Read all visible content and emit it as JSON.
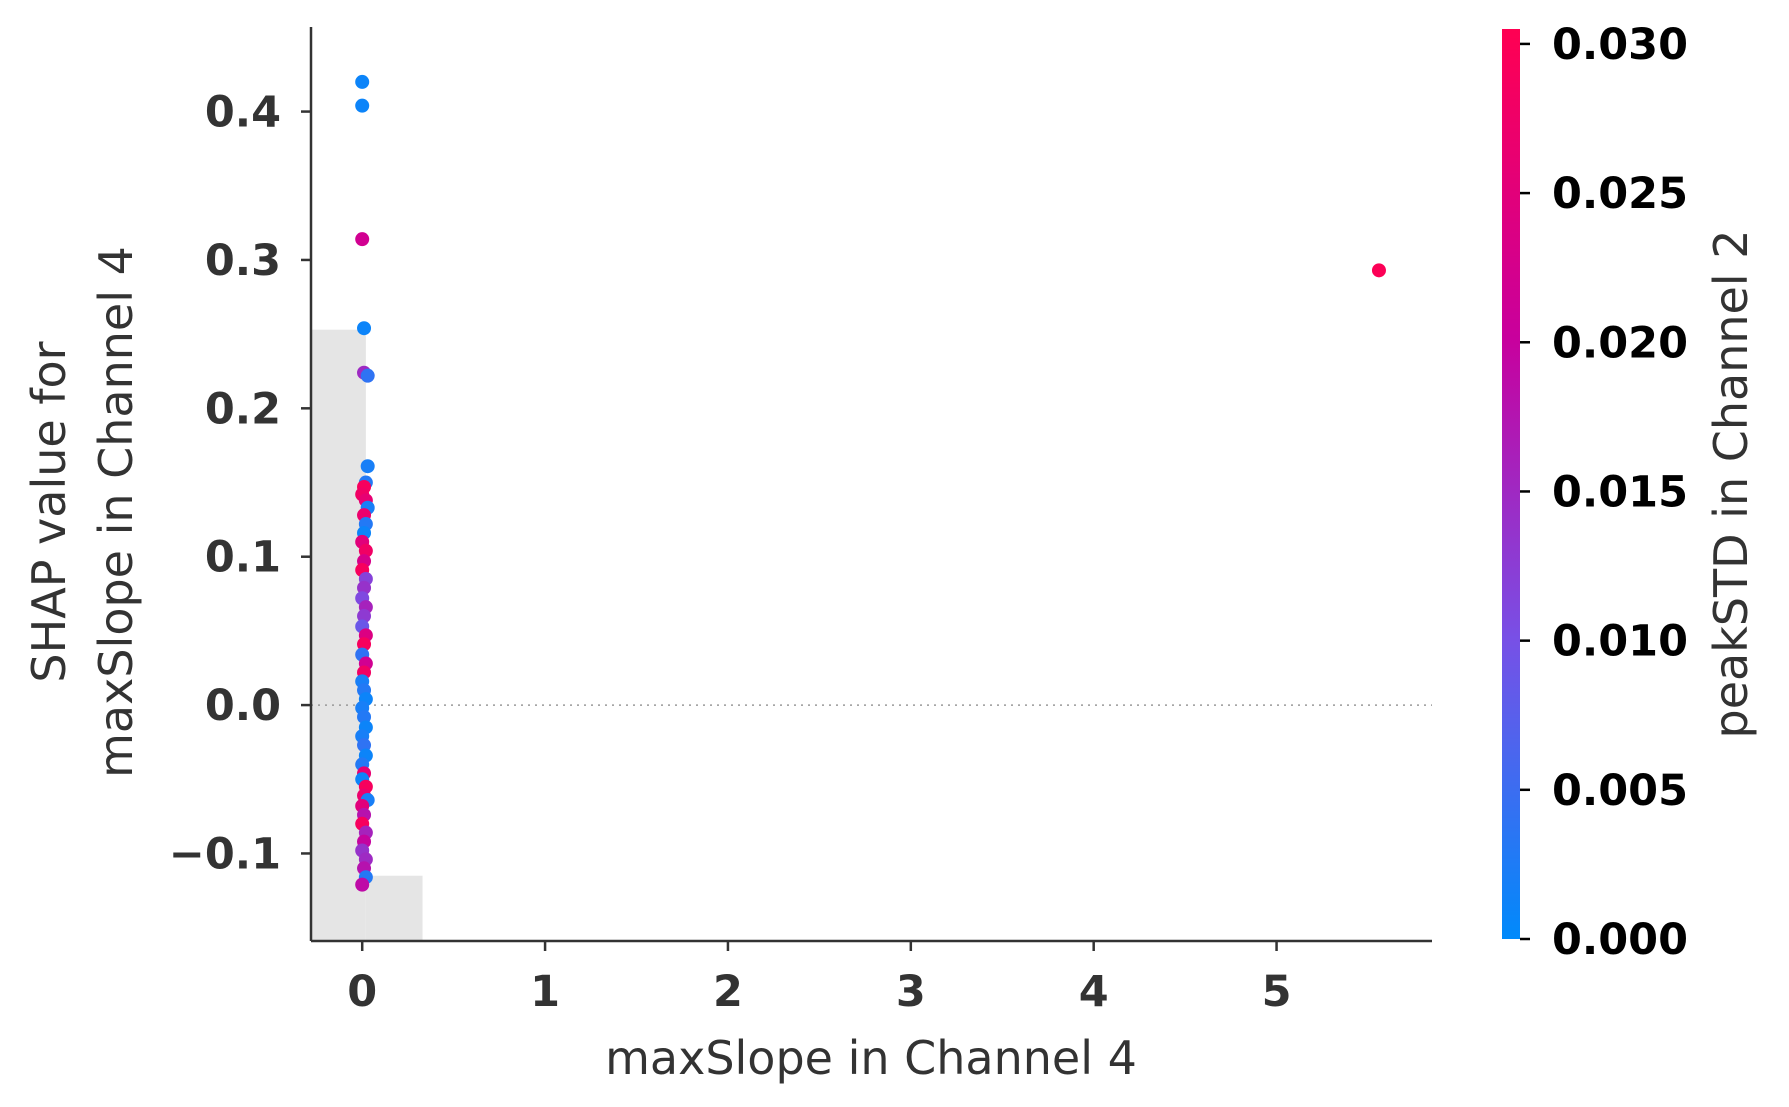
{
  "chart_data": {
    "type": "scatter",
    "xlabel": "maxSlope in Channel 4",
    "ylabel": [
      "SHAP value for",
      "maxSlope in Channel 4"
    ],
    "colorbar_label": "peakSTD in Channel 2",
    "xlim": [
      -0.28,
      5.85
    ],
    "ylim": [
      -0.159,
      0.457
    ],
    "x_ticks": [
      0,
      1,
      2,
      3,
      4,
      5
    ],
    "x_tick_labels": [
      "0",
      "1",
      "2",
      "3",
      "4",
      "5"
    ],
    "y_ticks": [
      -0.1,
      0.0,
      0.1,
      0.2,
      0.3,
      0.4
    ],
    "y_tick_labels": [
      "−0.1",
      "0.0",
      "0.1",
      "0.2",
      "0.3",
      "0.4"
    ],
    "colorbar_range": [
      0.0,
      0.0305
    ],
    "colorbar_ticks": [
      0.0,
      0.005,
      0.01,
      0.015,
      0.02,
      0.025,
      0.03
    ],
    "colorbar_tick_labels": [
      "0.000",
      "0.005",
      "0.010",
      "0.015",
      "0.020",
      "0.025",
      "0.030"
    ],
    "colormap": [
      "#008afb",
      "#7850e6",
      "#c8009d",
      "#ff0052"
    ],
    "grid": false,
    "zero_line": true,
    "histogram": [
      {
        "x0": -0.28,
        "x1": 0.02,
        "height": 0.412
      },
      {
        "x0": 0.02,
        "x1": 0.33,
        "height": 0.044
      }
    ],
    "points": [
      {
        "x": 0.0,
        "y": 0.42,
        "c": 0.001
      },
      {
        "x": 0.0,
        "y": 0.404,
        "c": 0.001
      },
      {
        "x": 0.0,
        "y": 0.314,
        "c": 0.022
      },
      {
        "x": 0.01,
        "y": 0.254,
        "c": 0.001
      },
      {
        "x": 0.01,
        "y": 0.224,
        "c": 0.015
      },
      {
        "x": 0.03,
        "y": 0.222,
        "c": 0.004
      },
      {
        "x": 0.03,
        "y": 0.161,
        "c": 0.002
      },
      {
        "x": 0.02,
        "y": 0.15,
        "c": 0.003
      },
      {
        "x": 0.01,
        "y": 0.147,
        "c": 0.029
      },
      {
        "x": 0.0,
        "y": 0.142,
        "c": 0.028
      },
      {
        "x": 0.02,
        "y": 0.138,
        "c": 0.026
      },
      {
        "x": 0.03,
        "y": 0.133,
        "c": 0.002
      },
      {
        "x": 0.01,
        "y": 0.128,
        "c": 0.027
      },
      {
        "x": 0.02,
        "y": 0.122,
        "c": 0.003
      },
      {
        "x": 0.01,
        "y": 0.116,
        "c": 0.001
      },
      {
        "x": 0.0,
        "y": 0.11,
        "c": 0.025
      },
      {
        "x": 0.02,
        "y": 0.104,
        "c": 0.028
      },
      {
        "x": 0.01,
        "y": 0.097,
        "c": 0.023
      },
      {
        "x": 0.0,
        "y": 0.091,
        "c": 0.029
      },
      {
        "x": 0.02,
        "y": 0.085,
        "c": 0.012
      },
      {
        "x": 0.01,
        "y": 0.079,
        "c": 0.014
      },
      {
        "x": 0.0,
        "y": 0.072,
        "c": 0.011
      },
      {
        "x": 0.02,
        "y": 0.066,
        "c": 0.016
      },
      {
        "x": 0.01,
        "y": 0.06,
        "c": 0.013
      },
      {
        "x": 0.0,
        "y": 0.053,
        "c": 0.009
      },
      {
        "x": 0.02,
        "y": 0.047,
        "c": 0.024
      },
      {
        "x": 0.01,
        "y": 0.041,
        "c": 0.029
      },
      {
        "x": 0.0,
        "y": 0.034,
        "c": 0.004
      },
      {
        "x": 0.02,
        "y": 0.028,
        "c": 0.022
      },
      {
        "x": 0.01,
        "y": 0.022,
        "c": 0.028
      },
      {
        "x": 0.0,
        "y": 0.016,
        "c": 0.002
      },
      {
        "x": 0.01,
        "y": 0.01,
        "c": 0.003
      },
      {
        "x": 0.02,
        "y": 0.004,
        "c": 0.001
      },
      {
        "x": 0.0,
        "y": -0.002,
        "c": 0.002
      },
      {
        "x": 0.01,
        "y": -0.008,
        "c": 0.003
      },
      {
        "x": 0.02,
        "y": -0.015,
        "c": 0.001
      },
      {
        "x": 0.0,
        "y": -0.021,
        "c": 0.002
      },
      {
        "x": 0.01,
        "y": -0.027,
        "c": 0.004
      },
      {
        "x": 0.02,
        "y": -0.034,
        "c": 0.001
      },
      {
        "x": 0.0,
        "y": -0.04,
        "c": 0.003
      },
      {
        "x": 0.01,
        "y": -0.046,
        "c": 0.026
      },
      {
        "x": 0.0,
        "y": -0.05,
        "c": 0.001
      },
      {
        "x": 0.02,
        "y": -0.055,
        "c": 0.029
      },
      {
        "x": 0.01,
        "y": -0.061,
        "c": 0.027
      },
      {
        "x": 0.03,
        "y": -0.064,
        "c": 0.002
      },
      {
        "x": 0.0,
        "y": -0.068,
        "c": 0.025
      },
      {
        "x": 0.01,
        "y": -0.074,
        "c": 0.018
      },
      {
        "x": 0.0,
        "y": -0.08,
        "c": 0.029
      },
      {
        "x": 0.02,
        "y": -0.086,
        "c": 0.016
      },
      {
        "x": 0.01,
        "y": -0.092,
        "c": 0.02
      },
      {
        "x": 0.0,
        "y": -0.098,
        "c": 0.014
      },
      {
        "x": 0.02,
        "y": -0.104,
        "c": 0.015
      },
      {
        "x": 0.01,
        "y": -0.11,
        "c": 0.018
      },
      {
        "x": 0.02,
        "y": -0.116,
        "c": 0.003
      },
      {
        "x": 0.0,
        "y": -0.121,
        "c": 0.019
      },
      {
        "x": 5.56,
        "y": 0.293,
        "c": 0.03
      }
    ]
  }
}
